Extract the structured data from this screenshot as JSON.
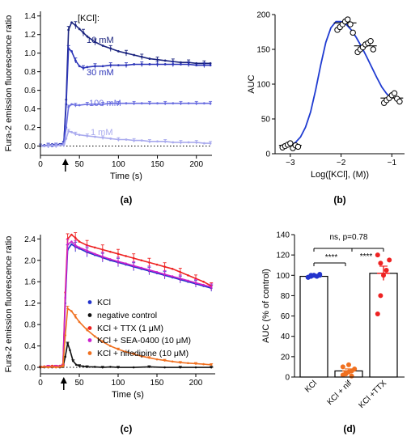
{
  "panel_labels": {
    "a": "(a)",
    "b": "(b)",
    "c": "(c)",
    "d": "(d)"
  },
  "chart_data": [
    {
      "id": "a",
      "type": "line",
      "xlabel": "Time (s)",
      "ylabel": "Fura-2 emission fluorescence ratio",
      "xlim": [
        0,
        220
      ],
      "ylim": [
        -0.1,
        1.45
      ],
      "xticks": [
        0,
        50,
        100,
        150,
        200
      ],
      "yticks": [
        0.0,
        0.2,
        0.4,
        0.6,
        0.8,
        1.0,
        1.2,
        1.4
      ],
      "ytick_labels": [
        "0.0",
        "0.2",
        "0.4",
        "0.6",
        "0.8",
        "1.0",
        "1.2",
        "1.4"
      ],
      "legend_title": "[KCl]:",
      "stimulus_time": 32,
      "baseline": 0.0,
      "series": [
        {
          "name": "10 mM",
          "color": "#1a237e",
          "x": [
            0,
            5,
            10,
            15,
            20,
            25,
            30,
            33,
            36,
            40,
            45,
            50,
            55,
            60,
            70,
            80,
            90,
            100,
            110,
            120,
            130,
            140,
            150,
            160,
            170,
            180,
            190,
            200,
            210,
            218
          ],
          "y": [
            0.0,
            0.0,
            0.01,
            0.0,
            0.01,
            0.02,
            0.03,
            0.5,
            1.25,
            1.33,
            1.3,
            1.26,
            1.22,
            1.18,
            1.12,
            1.08,
            1.05,
            1.02,
            1.0,
            0.98,
            0.96,
            0.94,
            0.93,
            0.92,
            0.91,
            0.9,
            0.9,
            0.89,
            0.89,
            0.89
          ]
        },
        {
          "name": "30 mM",
          "color": "#2b34b8",
          "x": [
            0,
            5,
            10,
            15,
            20,
            25,
            30,
            33,
            36,
            40,
            45,
            50,
            55,
            60,
            70,
            80,
            90,
            100,
            110,
            120,
            130,
            140,
            150,
            160,
            170,
            180,
            190,
            200,
            210,
            218
          ],
          "y": [
            0.0,
            0.01,
            0.0,
            0.02,
            0.01,
            0.02,
            0.03,
            0.45,
            1.05,
            1.02,
            0.92,
            0.86,
            0.84,
            0.85,
            0.86,
            0.86,
            0.87,
            0.87,
            0.87,
            0.88,
            0.88,
            0.88,
            0.88,
            0.88,
            0.88,
            0.88,
            0.88,
            0.87,
            0.87,
            0.87
          ]
        },
        {
          "name": "100 mM",
          "color": "#6a6ee0",
          "x": [
            0,
            5,
            10,
            15,
            20,
            25,
            30,
            33,
            36,
            40,
            45,
            50,
            60,
            70,
            80,
            90,
            100,
            110,
            120,
            130,
            140,
            150,
            160,
            170,
            180,
            190,
            200,
            210,
            218
          ],
          "y": [
            0.0,
            0.0,
            0.01,
            0.0,
            0.01,
            0.01,
            0.02,
            0.2,
            0.42,
            0.45,
            0.44,
            0.44,
            0.45,
            0.45,
            0.45,
            0.46,
            0.46,
            0.46,
            0.46,
            0.46,
            0.46,
            0.46,
            0.46,
            0.46,
            0.46,
            0.46,
            0.46,
            0.46,
            0.46
          ]
        },
        {
          "name": "1 mM",
          "color": "#a9aaee",
          "x": [
            0,
            5,
            10,
            15,
            20,
            25,
            30,
            33,
            36,
            40,
            45,
            50,
            60,
            70,
            80,
            90,
            100,
            110,
            120,
            130,
            140,
            150,
            160,
            170,
            180,
            190,
            200,
            210,
            218
          ],
          "y": [
            0.0,
            0.0,
            0.0,
            0.01,
            0.0,
            0.01,
            0.01,
            0.08,
            0.16,
            0.15,
            0.13,
            0.12,
            0.11,
            0.1,
            0.09,
            0.08,
            0.07,
            0.07,
            0.06,
            0.06,
            0.05,
            0.05,
            0.05,
            0.04,
            0.04,
            0.04,
            0.04,
            0.03,
            0.03
          ]
        }
      ]
    },
    {
      "id": "b",
      "type": "scatter",
      "xlabel": "Log([KCl], (M))",
      "ylabel": "AUC",
      "xlim": [
        -3.3,
        -0.75
      ],
      "ylim": [
        0,
        200
      ],
      "xticks": [
        -3,
        -2,
        -1
      ],
      "xtick_labels": [
        "−3",
        "−2",
        "−1"
      ],
      "yticks": [
        0,
        50,
        100,
        150,
        200
      ],
      "groups": [
        {
          "x": -3,
          "mean": 12,
          "points": [
            9,
            11,
            13,
            15,
            8,
            12,
            10
          ]
        },
        {
          "x": -1.92,
          "mean": 188,
          "points": [
            178,
            182,
            186,
            190,
            193,
            186,
            174
          ]
        },
        {
          "x": -1.52,
          "mean": 155,
          "points": [
            146,
            150,
            153,
            157,
            159,
            162,
            150
          ]
        },
        {
          "x": -1,
          "mean": 80,
          "points": [
            73,
            77,
            80,
            84,
            87,
            79,
            75
          ]
        }
      ],
      "fit_color": "#1f3bd1",
      "fit_x": [
        -3,
        -2.9,
        -2.8,
        -2.7,
        -2.6,
        -2.5,
        -2.4,
        -2.3,
        -2.2,
        -2.1,
        -2.0,
        -1.9,
        -1.8,
        -1.7,
        -1.6,
        -1.5,
        -1.4,
        -1.3,
        -1.2,
        -1.1,
        -1.0
      ],
      "fit_y": [
        12,
        16,
        24,
        38,
        60,
        92,
        128,
        160,
        181,
        190,
        190,
        186,
        178,
        167,
        154,
        140,
        125,
        110,
        96,
        86,
        80
      ]
    },
    {
      "id": "c",
      "type": "line",
      "xlabel": "Time (s)",
      "ylabel": "Fura-2 emission fluorescence ratio",
      "xlim": [
        0,
        225
      ],
      "ylim": [
        -0.12,
        2.48
      ],
      "xticks": [
        0,
        50,
        100,
        150,
        200
      ],
      "yticks": [
        0.0,
        0.4,
        0.8,
        1.2,
        1.6,
        2.0,
        2.4
      ],
      "ytick_labels": [
        "0.0",
        "0.4",
        "0.8",
        "1.2",
        "1.6",
        "2.0",
        "2.4"
      ],
      "stimulus_time": 30,
      "baseline": 0.0,
      "series": [
        {
          "name": "KCl",
          "color": "#2233cc",
          "x": [
            0,
            5,
            10,
            15,
            20,
            25,
            29,
            32,
            35,
            40,
            45,
            50,
            60,
            70,
            80,
            90,
            100,
            110,
            120,
            130,
            140,
            150,
            160,
            170,
            180,
            190,
            200,
            210,
            220
          ],
          "y": [
            0.0,
            0.01,
            0.0,
            0.02,
            0.01,
            0.02,
            0.03,
            1.2,
            2.2,
            2.3,
            2.25,
            2.22,
            2.15,
            2.1,
            2.05,
            2.0,
            1.96,
            1.92,
            1.88,
            1.84,
            1.8,
            1.76,
            1.72,
            1.68,
            1.64,
            1.6,
            1.56,
            1.52,
            1.48
          ]
        },
        {
          "name": "negative control",
          "color": "#111111",
          "x": [
            0,
            5,
            10,
            15,
            20,
            25,
            29,
            32,
            35,
            38,
            42,
            46,
            50,
            55,
            60,
            70,
            80,
            90,
            100,
            120,
            140,
            160,
            180,
            200,
            220
          ],
          "y": [
            0.0,
            0.0,
            0.01,
            0.0,
            0.01,
            0.0,
            0.01,
            0.2,
            0.45,
            0.32,
            0.12,
            0.05,
            0.03,
            0.02,
            0.01,
            0.01,
            0.0,
            0.01,
            0.0,
            0.0,
            0.01,
            0.0,
            0.0,
            0.0,
            0.0
          ]
        },
        {
          "name": "KCl + TTX (1 μM)",
          "color": "#ee2222",
          "x": [
            0,
            5,
            10,
            15,
            20,
            25,
            29,
            32,
            35,
            40,
            45,
            50,
            60,
            70,
            80,
            90,
            100,
            110,
            120,
            130,
            140,
            150,
            160,
            170,
            180,
            190,
            200,
            210,
            220
          ],
          "y": [
            0.0,
            0.02,
            0.01,
            0.03,
            0.02,
            0.03,
            0.04,
            1.4,
            2.4,
            2.48,
            2.42,
            2.35,
            2.28,
            2.24,
            2.2,
            2.16,
            2.12,
            2.08,
            2.04,
            2.0,
            1.96,
            1.92,
            1.88,
            1.84,
            1.78,
            1.72,
            1.66,
            1.6,
            1.52
          ]
        },
        {
          "name": "KCl + SEA-0400 (10 μM)",
          "color": "#cc22cc",
          "x": [
            0,
            5,
            10,
            15,
            20,
            25,
            29,
            32,
            35,
            40,
            45,
            50,
            60,
            70,
            80,
            90,
            100,
            110,
            120,
            130,
            140,
            150,
            160,
            170,
            180,
            190,
            200,
            210,
            220
          ],
          "y": [
            0.0,
            0.01,
            0.02,
            0.01,
            0.02,
            0.02,
            0.03,
            1.3,
            2.3,
            2.35,
            2.28,
            2.24,
            2.18,
            2.12,
            2.07,
            2.02,
            1.98,
            1.94,
            1.9,
            1.86,
            1.82,
            1.78,
            1.74,
            1.7,
            1.66,
            1.62,
            1.58,
            1.54,
            1.5
          ]
        },
        {
          "name": "KCl  + nifedipine (10 μM)",
          "color": "#f07020",
          "x": [
            0,
            5,
            10,
            15,
            20,
            25,
            29,
            32,
            35,
            40,
            45,
            50,
            60,
            70,
            80,
            90,
            100,
            110,
            120,
            130,
            140,
            150,
            160,
            170,
            180,
            190,
            200,
            210,
            220
          ],
          "y": [
            0.0,
            0.01,
            0.0,
            0.01,
            0.0,
            0.01,
            0.02,
            0.6,
            1.1,
            1.05,
            0.95,
            0.85,
            0.7,
            0.58,
            0.48,
            0.4,
            0.34,
            0.29,
            0.25,
            0.21,
            0.18,
            0.15,
            0.13,
            0.11,
            0.09,
            0.08,
            0.07,
            0.06,
            0.05
          ]
        }
      ]
    },
    {
      "id": "d",
      "type": "bar",
      "ylabel": "AUC (% of control)",
      "ylim": [
        0,
        140
      ],
      "yticks": [
        0,
        20,
        40,
        60,
        80,
        100,
        120,
        140
      ],
      "categories": [
        "KCl",
        "KCl + nif",
        "KCl +TTX"
      ],
      "values": [
        99,
        6,
        102
      ],
      "errors": [
        1,
        2,
        7
      ],
      "point_colors": [
        "#2233cc",
        "#f07020",
        "#ee2222"
      ],
      "points": [
        [
          98,
          99,
          100,
          99,
          100,
          98,
          99,
          100,
          99,
          101,
          98,
          100
        ],
        [
          2,
          4,
          5,
          6,
          8,
          10,
          3,
          12,
          1
        ],
        [
          62,
          80,
          100,
          105,
          115,
          120,
          112
        ]
      ],
      "annotations": [
        {
          "text": "ns, p=0.78",
          "from": 0,
          "to": 2,
          "level": 130
        },
        {
          "text": "****",
          "from": 0,
          "to": 1,
          "level": 110
        },
        {
          "text": "****",
          "from": 1,
          "to": 2,
          "level": 130
        }
      ]
    }
  ]
}
